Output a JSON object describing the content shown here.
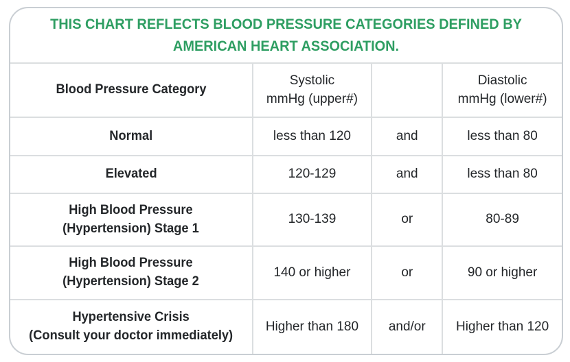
{
  "colors": {
    "title_green": "#2e9e62",
    "border_gray": "#c9ced3",
    "gridline_gray": "#dbdee0",
    "text_dark": "#232629",
    "background": "#ffffff"
  },
  "chart_data": {
    "type": "table",
    "title": "THIS CHART REFLECTS BLOOD PRESSURE CATEGORIES DEFINED BY\nAMERICAN HEART ASSOCIATION.",
    "columns": [
      "Blood Pressure Category",
      "Systolic\nmmHg (upper#)",
      "",
      "Diastolic\nmmHg (lower#)"
    ],
    "rows": [
      [
        "Normal",
        "less than 120",
        "and",
        "less than 80"
      ],
      [
        "Elevated",
        "120-129",
        "and",
        "less than 80"
      ],
      [
        "High Blood Pressure\n(Hypertension) Stage 1",
        "130-139",
        "or",
        "80-89"
      ],
      [
        "High Blood Pressure\n(Hypertension) Stage 2",
        "140 or higher",
        "or",
        "90 or higher"
      ],
      [
        "Hypertensive Crisis\n(Consult your doctor immediately)",
        "Higher than 180",
        "and/or",
        "Higher than 120"
      ]
    ]
  }
}
